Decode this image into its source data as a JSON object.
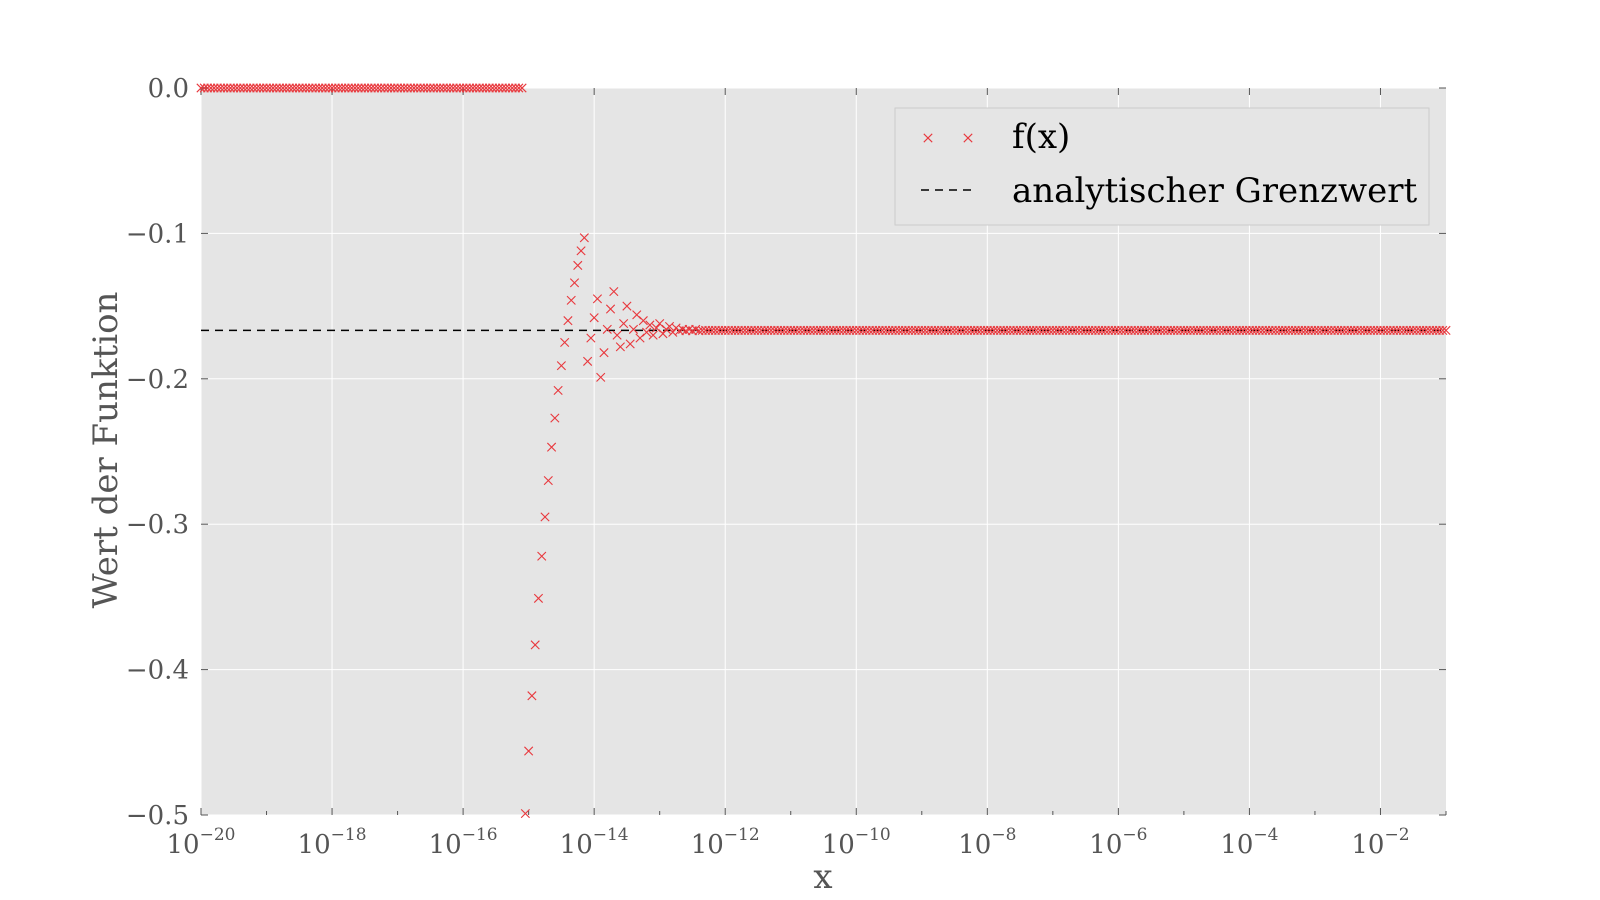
{
  "chart_data": {
    "type": "scatter",
    "xscale": "log",
    "xlim": [
      1e-20,
      0.1
    ],
    "ylim": [
      -0.5,
      0.0
    ],
    "grid": true,
    "xlabel": "x",
    "ylabel": "Wert der Funktion",
    "xtick_labels": [
      {
        "base": "10",
        "exp": "−20"
      },
      {
        "base": "10",
        "exp": "−18"
      },
      {
        "base": "10",
        "exp": "−16"
      },
      {
        "base": "10",
        "exp": "−14"
      },
      {
        "base": "10",
        "exp": "−12"
      },
      {
        "base": "10",
        "exp": "−10"
      },
      {
        "base": "10",
        "exp": "−8"
      },
      {
        "base": "10",
        "exp": "−6"
      },
      {
        "base": "10",
        "exp": "−4"
      },
      {
        "base": "10",
        "exp": "−2"
      }
    ],
    "ytick_labels": [
      "0.0",
      "−0.1",
      "−0.2",
      "−0.3",
      "−0.4",
      "−0.5"
    ],
    "legend_position": "top-right",
    "series": [
      {
        "name": "f(x)",
        "marker": "x",
        "color": "#e8383d",
        "points_log10x_y": [
          [
            -15.1,
            0.0
          ],
          [
            -15.05,
            -0.499
          ],
          [
            -15.0,
            -0.456
          ],
          [
            -14.95,
            -0.418
          ],
          [
            -14.9,
            -0.383
          ],
          [
            -14.85,
            -0.351
          ],
          [
            -14.8,
            -0.322
          ],
          [
            -14.75,
            -0.295
          ],
          [
            -14.7,
            -0.27
          ],
          [
            -14.65,
            -0.247
          ],
          [
            -14.6,
            -0.227
          ],
          [
            -14.55,
            -0.208
          ],
          [
            -14.5,
            -0.191
          ],
          [
            -14.45,
            -0.175
          ],
          [
            -14.4,
            -0.16
          ],
          [
            -14.35,
            -0.146
          ],
          [
            -14.3,
            -0.134
          ],
          [
            -14.25,
            -0.122
          ],
          [
            -14.2,
            -0.112
          ],
          [
            -14.15,
            -0.103
          ],
          [
            -14.1,
            -0.188
          ],
          [
            -14.05,
            -0.172
          ],
          [
            -14.0,
            -0.158
          ],
          [
            -13.95,
            -0.145
          ],
          [
            -13.9,
            -0.199
          ],
          [
            -13.85,
            -0.182
          ],
          [
            -13.8,
            -0.166
          ],
          [
            -13.75,
            -0.152
          ],
          [
            -13.7,
            -0.14
          ],
          [
            -13.65,
            -0.17
          ],
          [
            -13.6,
            -0.178
          ],
          [
            -13.55,
            -0.162
          ],
          [
            -13.5,
            -0.15
          ],
          [
            -13.45,
            -0.176
          ],
          [
            -13.4,
            -0.166
          ],
          [
            -13.35,
            -0.156
          ],
          [
            -13.3,
            -0.172
          ],
          [
            -13.25,
            -0.16
          ],
          [
            -13.2,
            -0.168
          ],
          [
            -13.15,
            -0.163
          ],
          [
            -13.1,
            -0.17
          ],
          [
            -13.05,
            -0.165
          ],
          [
            -13.0,
            -0.162
          ],
          [
            -12.95,
            -0.169
          ],
          [
            -12.9,
            -0.166
          ],
          [
            -12.85,
            -0.164
          ],
          [
            -12.8,
            -0.168
          ],
          [
            -12.75,
            -0.165
          ],
          [
            -12.7,
            -0.167
          ],
          [
            -12.65,
            -0.166
          ],
          [
            -12.6,
            -0.167
          ],
          [
            -12.55,
            -0.166
          ],
          [
            -12.5,
            -0.167
          ],
          [
            -12.45,
            -0.166
          ],
          [
            -12.4,
            -0.167
          ]
        ],
        "bands": [
          {
            "log10x_from": -20.0,
            "log10x_to": -15.15,
            "step": 0.05,
            "y": 0.0
          },
          {
            "log10x_from": -12.35,
            "log10x_to": -1.0,
            "step": 0.05,
            "y": -0.1667
          }
        ]
      },
      {
        "name": "analytischer Grenzwert",
        "type": "line",
        "style": "dashed",
        "color": "#000000",
        "y": -0.1667
      }
    ],
    "colors": {
      "axes_background": "#e5e5e5",
      "grid": "#ffffff",
      "tick_label": "#555555",
      "marker": "#e8383d"
    }
  }
}
